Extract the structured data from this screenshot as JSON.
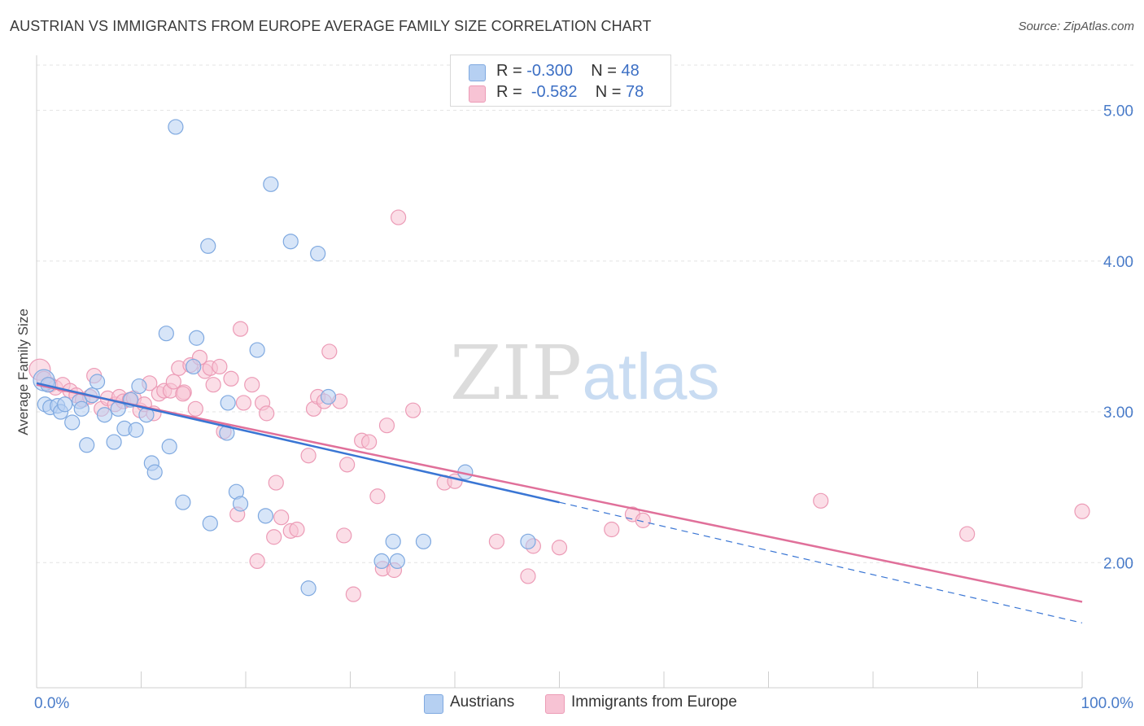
{
  "title": "AUSTRIAN VS IMMIGRANTS FROM EUROPE AVERAGE FAMILY SIZE CORRELATION CHART",
  "source": "Source: ZipAtlas.com",
  "watermark": {
    "zip": "ZIP",
    "atlas": "atlas"
  },
  "legend_top": [
    {
      "r_label": "R = ",
      "r_value": "-0.300",
      "n_label": "N = ",
      "n_value": "48"
    },
    {
      "r_label": "R = ",
      "r_value": "-0.582",
      "n_label": "N = ",
      "n_value": "78"
    }
  ],
  "colors": {
    "blue_fill": "#b6d0f2",
    "blue_stroke": "#7fa9e0",
    "blue_line": "#3a76d4",
    "pink_fill": "#f7c3d4",
    "pink_stroke": "#ec9bb6",
    "pink_line": "#e0709a",
    "axis_text": "#4a7cc9"
  },
  "chart_data": {
    "type": "scatter",
    "title": "AUSTRIAN VS IMMIGRANTS FROM EUROPE AVERAGE FAMILY SIZE CORRELATION CHART",
    "xlabel": "",
    "ylabel": "Average Family Size",
    "xlim": [
      0,
      100
    ],
    "ylim": [
      1.17,
      5.3
    ],
    "x_tick_labels": [
      "0.0%",
      "100.0%"
    ],
    "y_ticks": [
      {
        "value": 2.0,
        "label": "2.00"
      },
      {
        "value": 3.0,
        "label": "3.00"
      },
      {
        "value": 4.0,
        "label": "4.00"
      },
      {
        "value": 5.0,
        "label": "5.00"
      }
    ],
    "grid": true,
    "legend_position": "bottom",
    "series": [
      {
        "name": "Austrians",
        "r": -0.3,
        "n": 48,
        "trend": {
          "x0": 0,
          "y0": 3.19,
          "x1": 50,
          "y1": 2.4,
          "dash_to_x": 100,
          "dash_to_y": 1.6
        },
        "points": [
          [
            0.7,
            3.21
          ],
          [
            0.8,
            3.05
          ],
          [
            1.3,
            3.03
          ],
          [
            2.0,
            3.04
          ],
          [
            2.3,
            3.0
          ],
          [
            3.4,
            2.93
          ],
          [
            4.1,
            3.07
          ],
          [
            4.3,
            3.02
          ],
          [
            4.8,
            2.78
          ],
          [
            5.3,
            3.11
          ],
          [
            5.8,
            3.2
          ],
          [
            6.5,
            2.98
          ],
          [
            7.4,
            2.8
          ],
          [
            7.8,
            3.02
          ],
          [
            8.4,
            2.89
          ],
          [
            9.0,
            3.08
          ],
          [
            9.5,
            2.88
          ],
          [
            9.8,
            3.17
          ],
          [
            10.5,
            2.98
          ],
          [
            11.0,
            2.66
          ],
          [
            11.3,
            2.6
          ],
          [
            12.4,
            3.52
          ],
          [
            12.7,
            2.77
          ],
          [
            13.3,
            4.89
          ],
          [
            14.0,
            2.4
          ],
          [
            15.0,
            3.3
          ],
          [
            15.3,
            3.49
          ],
          [
            16.4,
            4.1
          ],
          [
            16.6,
            2.26
          ],
          [
            18.2,
            2.86
          ],
          [
            18.3,
            3.06
          ],
          [
            19.1,
            2.47
          ],
          [
            19.5,
            2.39
          ],
          [
            21.1,
            3.41
          ],
          [
            21.9,
            2.31
          ],
          [
            22.4,
            4.51
          ],
          [
            24.3,
            4.13
          ],
          [
            26.0,
            1.83
          ],
          [
            26.9,
            4.05
          ],
          [
            27.9,
            3.1
          ],
          [
            33.0,
            2.01
          ],
          [
            34.1,
            2.14
          ],
          [
            34.5,
            2.01
          ],
          [
            37.0,
            2.14
          ],
          [
            41.0,
            2.6
          ],
          [
            47.0,
            2.14
          ],
          [
            1.1,
            3.18
          ],
          [
            2.7,
            3.05
          ]
        ]
      },
      {
        "name": "Immigrants from Europe",
        "r": -0.582,
        "n": 78,
        "trend": {
          "x0": 0,
          "y0": 3.18,
          "x1": 100,
          "y1": 1.74
        },
        "points": [
          [
            0.3,
            3.28
          ],
          [
            0.7,
            3.22
          ],
          [
            1.3,
            3.18
          ],
          [
            1.8,
            3.16
          ],
          [
            2.5,
            3.18
          ],
          [
            3.2,
            3.14
          ],
          [
            3.8,
            3.11
          ],
          [
            4.4,
            3.08
          ],
          [
            5.1,
            3.1
          ],
          [
            5.5,
            3.24
          ],
          [
            6.2,
            3.02
          ],
          [
            6.8,
            3.09
          ],
          [
            7.5,
            3.05
          ],
          [
            7.9,
            3.1
          ],
          [
            8.3,
            3.07
          ],
          [
            8.9,
            3.08
          ],
          [
            9.3,
            3.09
          ],
          [
            9.9,
            3.01
          ],
          [
            10.3,
            3.05
          ],
          [
            10.8,
            3.19
          ],
          [
            11.2,
            2.99
          ],
          [
            11.7,
            3.12
          ],
          [
            12.2,
            3.14
          ],
          [
            12.8,
            3.14
          ],
          [
            13.1,
            3.2
          ],
          [
            13.6,
            3.29
          ],
          [
            14.1,
            3.13
          ],
          [
            14.7,
            3.31
          ],
          [
            15.2,
            3.02
          ],
          [
            15.6,
            3.36
          ],
          [
            16.1,
            3.27
          ],
          [
            16.6,
            3.29
          ],
          [
            16.9,
            3.18
          ],
          [
            17.5,
            3.3
          ],
          [
            17.9,
            2.87
          ],
          [
            18.6,
            3.22
          ],
          [
            19.2,
            2.32
          ],
          [
            19.5,
            3.55
          ],
          [
            19.8,
            3.06
          ],
          [
            20.6,
            3.18
          ],
          [
            21.1,
            2.01
          ],
          [
            21.6,
            3.06
          ],
          [
            22.0,
            2.99
          ],
          [
            22.7,
            2.17
          ],
          [
            22.9,
            2.53
          ],
          [
            23.4,
            2.3
          ],
          [
            24.3,
            2.21
          ],
          [
            24.9,
            2.22
          ],
          [
            26.0,
            2.71
          ],
          [
            26.5,
            3.02
          ],
          [
            26.9,
            3.1
          ],
          [
            27.5,
            3.07
          ],
          [
            28.0,
            3.4
          ],
          [
            29.0,
            3.07
          ],
          [
            29.4,
            2.18
          ],
          [
            29.7,
            2.65
          ],
          [
            30.3,
            1.79
          ],
          [
            31.1,
            2.81
          ],
          [
            31.8,
            2.8
          ],
          [
            32.6,
            2.44
          ],
          [
            33.1,
            1.96
          ],
          [
            33.5,
            2.91
          ],
          [
            34.2,
            1.95
          ],
          [
            34.6,
            4.29
          ],
          [
            36.0,
            3.01
          ],
          [
            39.0,
            2.53
          ],
          [
            40.0,
            2.54
          ],
          [
            44.0,
            2.14
          ],
          [
            47.0,
            1.91
          ],
          [
            47.5,
            2.11
          ],
          [
            50.0,
            2.1
          ],
          [
            55.0,
            2.22
          ],
          [
            57.0,
            2.32
          ],
          [
            58.0,
            2.28
          ],
          [
            75.0,
            2.41
          ],
          [
            89.0,
            2.19
          ],
          [
            100.0,
            2.34
          ],
          [
            14.0,
            3.12
          ]
        ]
      }
    ]
  },
  "bottom_legend": [
    "Austrians",
    "Immigrants from Europe"
  ]
}
